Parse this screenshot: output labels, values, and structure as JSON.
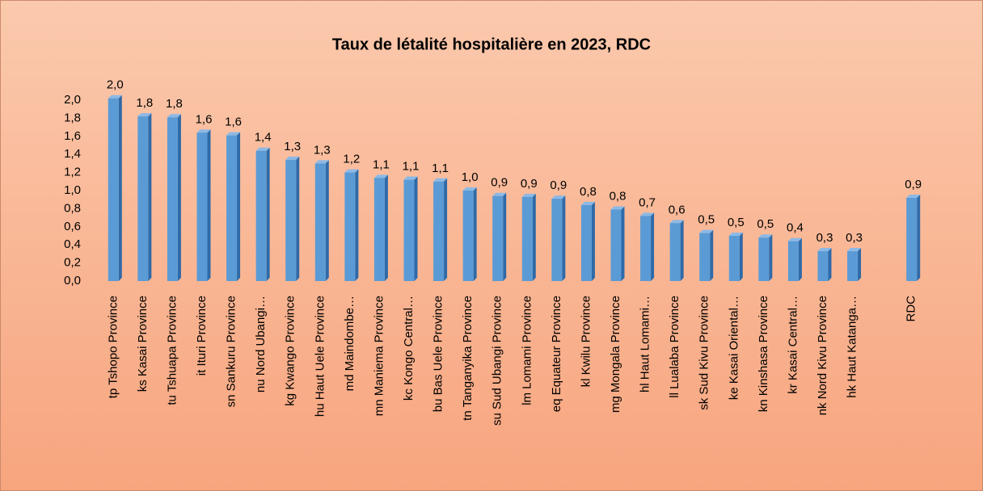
{
  "chart_data": {
    "type": "bar",
    "title": "Taux de létalité hospitalière en 2023, RDC",
    "categories": [
      "tp Tshopo Province",
      "ks Kasai Province",
      "tu Tshuapa Province",
      "it Ituri Province",
      "sn Sankuru Province",
      "nu Nord Ubangi…",
      "kg Kwango Province",
      "hu Haut Uele Province",
      "md Maindombe…",
      "mn Maniema Province",
      "kc Kongo Central…",
      "bu Bas Uele Province",
      "tn Tanganyika Province",
      "su Sud Ubangi Province",
      "lm Lomami Province",
      "eq Equateur Province",
      "kl Kwilu Province",
      "mg Mongala Province",
      "hl Haut Lomami…",
      "ll Lualaba Province",
      "sk Sud Kivu Province",
      "ke Kasai Oriental…",
      "kn Kinshasa Province",
      "kr Kasai Central…",
      "nk Nord Kivu Province",
      "hk Haut Katanga…",
      null,
      "RDC"
    ],
    "values": [
      2.02,
      1.82,
      1.81,
      1.64,
      1.61,
      1.44,
      1.34,
      1.3,
      1.2,
      1.14,
      1.12,
      1.1,
      1.0,
      0.94,
      0.93,
      0.91,
      0.84,
      0.79,
      0.72,
      0.64,
      0.53,
      0.5,
      0.48,
      0.44,
      0.33,
      0.33,
      null,
      0.92
    ],
    "value_labels": [
      "2,0",
      "1,8",
      "1,8",
      "1,6",
      "1,6",
      "1,4",
      "1,3",
      "1,3",
      "1,2",
      "1,1",
      "1,1",
      "1,1",
      "1,0",
      "0,9",
      "0,9",
      "0,9",
      "0,8",
      "0,8",
      "0,7",
      "0,6",
      "0,5",
      "0,5",
      "0,5",
      "0,4",
      "0,3",
      "0,3",
      null,
      "0,9"
    ],
    "color": "#5b9bd5",
    "ylim": [
      0,
      2.0
    ],
    "yticks": [
      {
        "value": 0,
        "label": "0,0"
      },
      {
        "value": 0.2,
        "label": "0,2"
      },
      {
        "value": 0.4,
        "label": "0,4"
      },
      {
        "value": 0.6,
        "label": "0,6"
      },
      {
        "value": 0.8,
        "label": "0,8"
      },
      {
        "value": 1.0,
        "label": "1,0"
      },
      {
        "value": 1.2,
        "label": "1,2"
      },
      {
        "value": 1.4,
        "label": "1,4"
      },
      {
        "value": 1.6,
        "label": "1,6"
      },
      {
        "value": 1.8,
        "label": "1,8"
      },
      {
        "value": 2.0,
        "label": "2,0"
      }
    ],
    "grid": false
  }
}
